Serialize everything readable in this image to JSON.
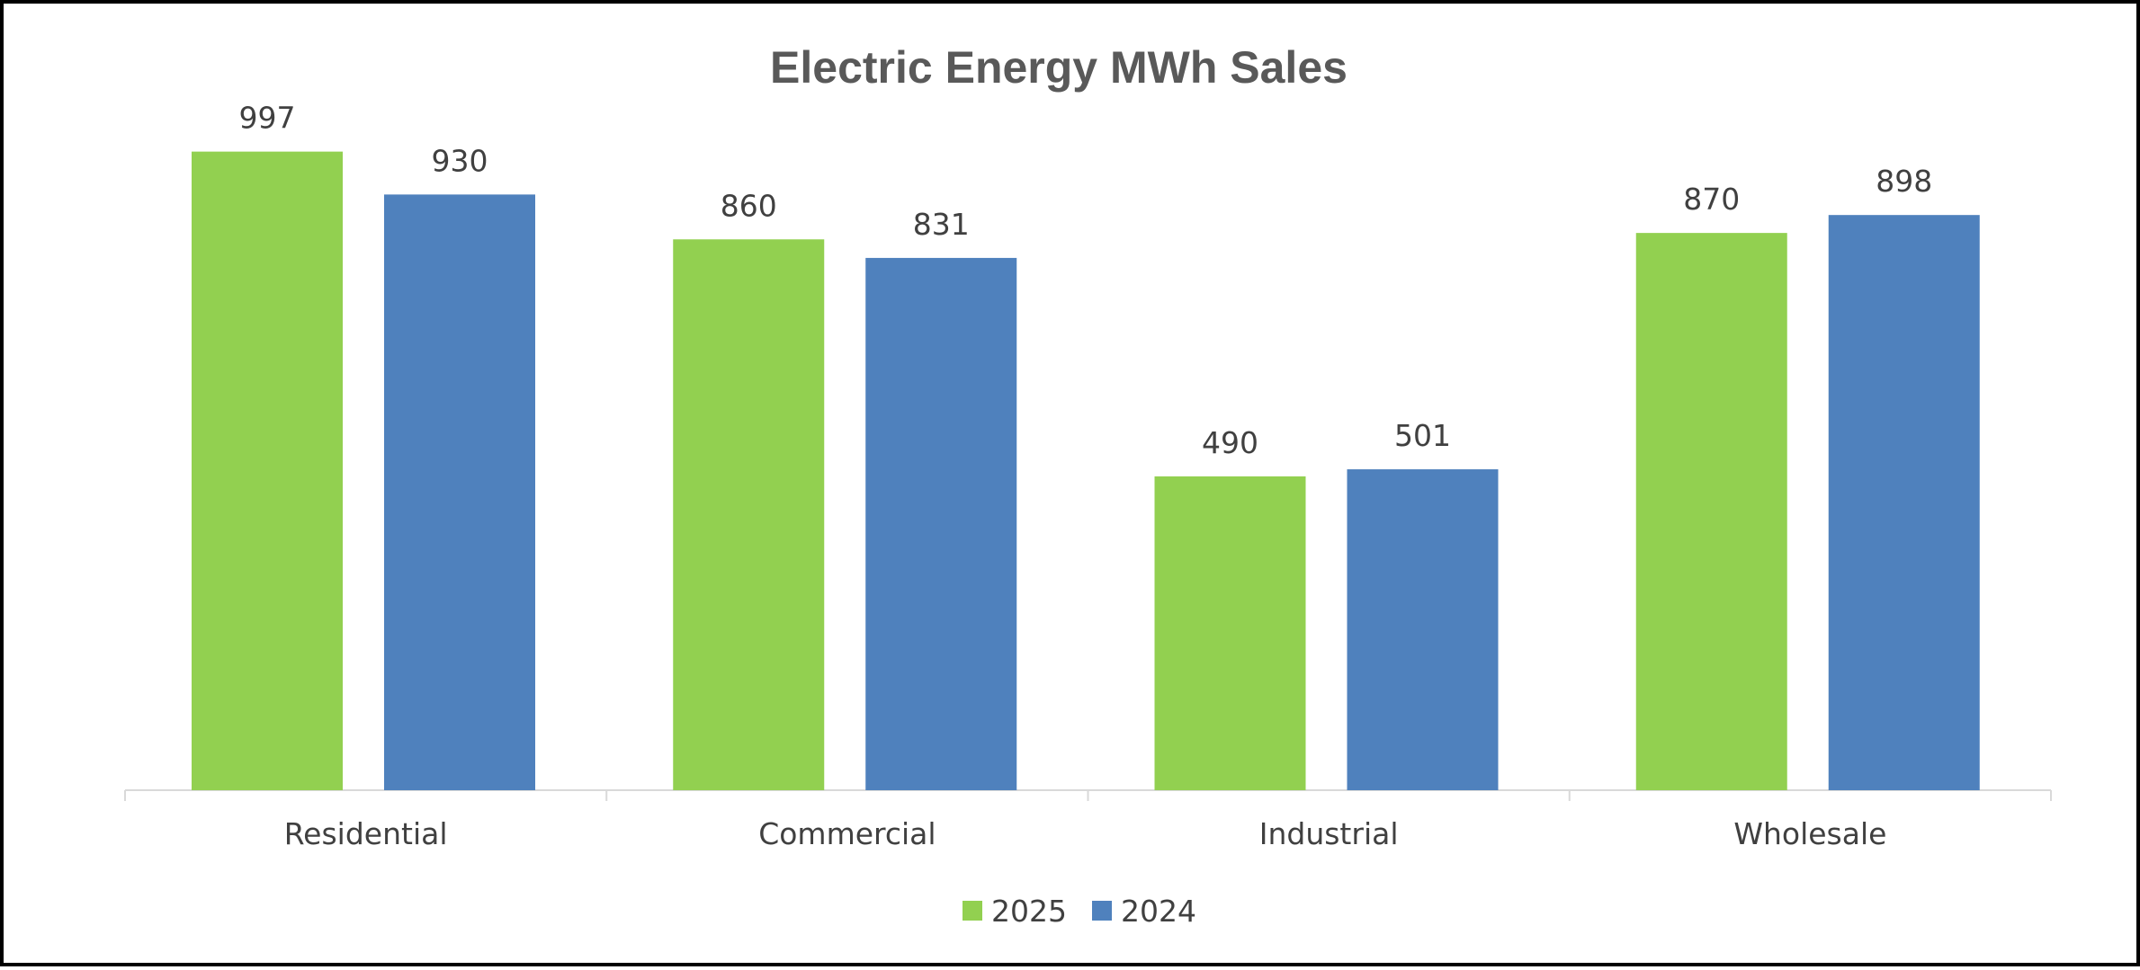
{
  "chart_data": {
    "type": "bar",
    "title": "Electric Energy MWh Sales",
    "categories": [
      "Residential",
      "Commercial",
      "Industrial",
      "Wholesale"
    ],
    "series": [
      {
        "name": "2025",
        "values": [
          997,
          860,
          490,
          870
        ],
        "color": "#92D050"
      },
      {
        "name": "2024",
        "values": [
          930,
          831,
          501,
          898
        ],
        "color": "#4F81BD"
      }
    ],
    "xlabel": "",
    "ylabel": "",
    "ylim": [
      0,
      1000
    ],
    "grid": false,
    "legend": "bottom",
    "axis_color": "#D9D9D9"
  }
}
